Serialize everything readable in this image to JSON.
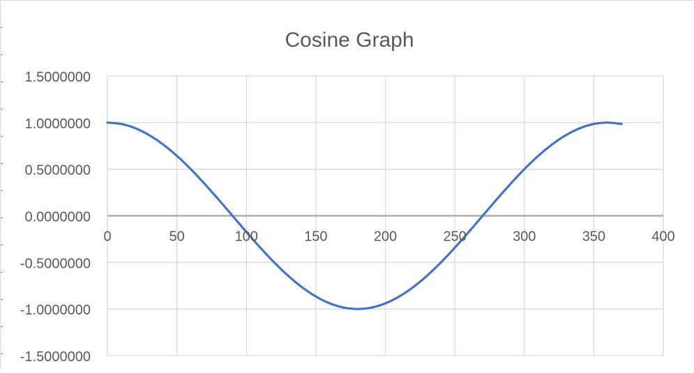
{
  "chart_data": {
    "type": "line",
    "title": "Cosine Graph",
    "xlabel": "",
    "ylabel": "",
    "xlim": [
      0,
      400
    ],
    "ylim": [
      -1.5,
      1.5
    ],
    "x_ticks": [
      0,
      50,
      100,
      150,
      200,
      250,
      300,
      350,
      400
    ],
    "x_tick_labels": [
      "0",
      "50",
      "100",
      "150",
      "200",
      "250",
      "300",
      "350",
      "400"
    ],
    "y_ticks": [
      1.5,
      1.0,
      0.5,
      0.0,
      -0.5,
      -1.0,
      -1.5
    ],
    "y_tick_labels": [
      "1.5000000",
      "1.0000000",
      "0.5000000",
      "0.0000000",
      "-0.5000000",
      "-1.0000000",
      "-1.5000000"
    ],
    "grid": true,
    "legend": "none",
    "series": [
      {
        "color": "#4472c4",
        "x": [
          0,
          10,
          20,
          30,
          40,
          50,
          60,
          70,
          80,
          90,
          100,
          110,
          120,
          130,
          140,
          150,
          160,
          170,
          180,
          190,
          200,
          210,
          220,
          230,
          240,
          250,
          260,
          270,
          280,
          290,
          300,
          310,
          320,
          330,
          340,
          350,
          360,
          370
        ],
        "values": [
          1.0,
          0.985,
          0.94,
          0.866,
          0.766,
          0.643,
          0.5,
          0.342,
          0.174,
          0.0,
          -0.174,
          -0.342,
          -0.5,
          -0.643,
          -0.766,
          -0.866,
          -0.94,
          -0.985,
          -1.0,
          -0.985,
          -0.94,
          -0.866,
          -0.766,
          -0.643,
          -0.5,
          -0.342,
          -0.174,
          0.0,
          0.174,
          0.342,
          0.5,
          0.643,
          0.766,
          0.866,
          0.94,
          0.985,
          1.0,
          0.985
        ]
      }
    ],
    "colors": {
      "line": "#4472c4",
      "grid": "#d9d9d9",
      "axis": "#a6a6a6",
      "text": "#595959"
    }
  }
}
